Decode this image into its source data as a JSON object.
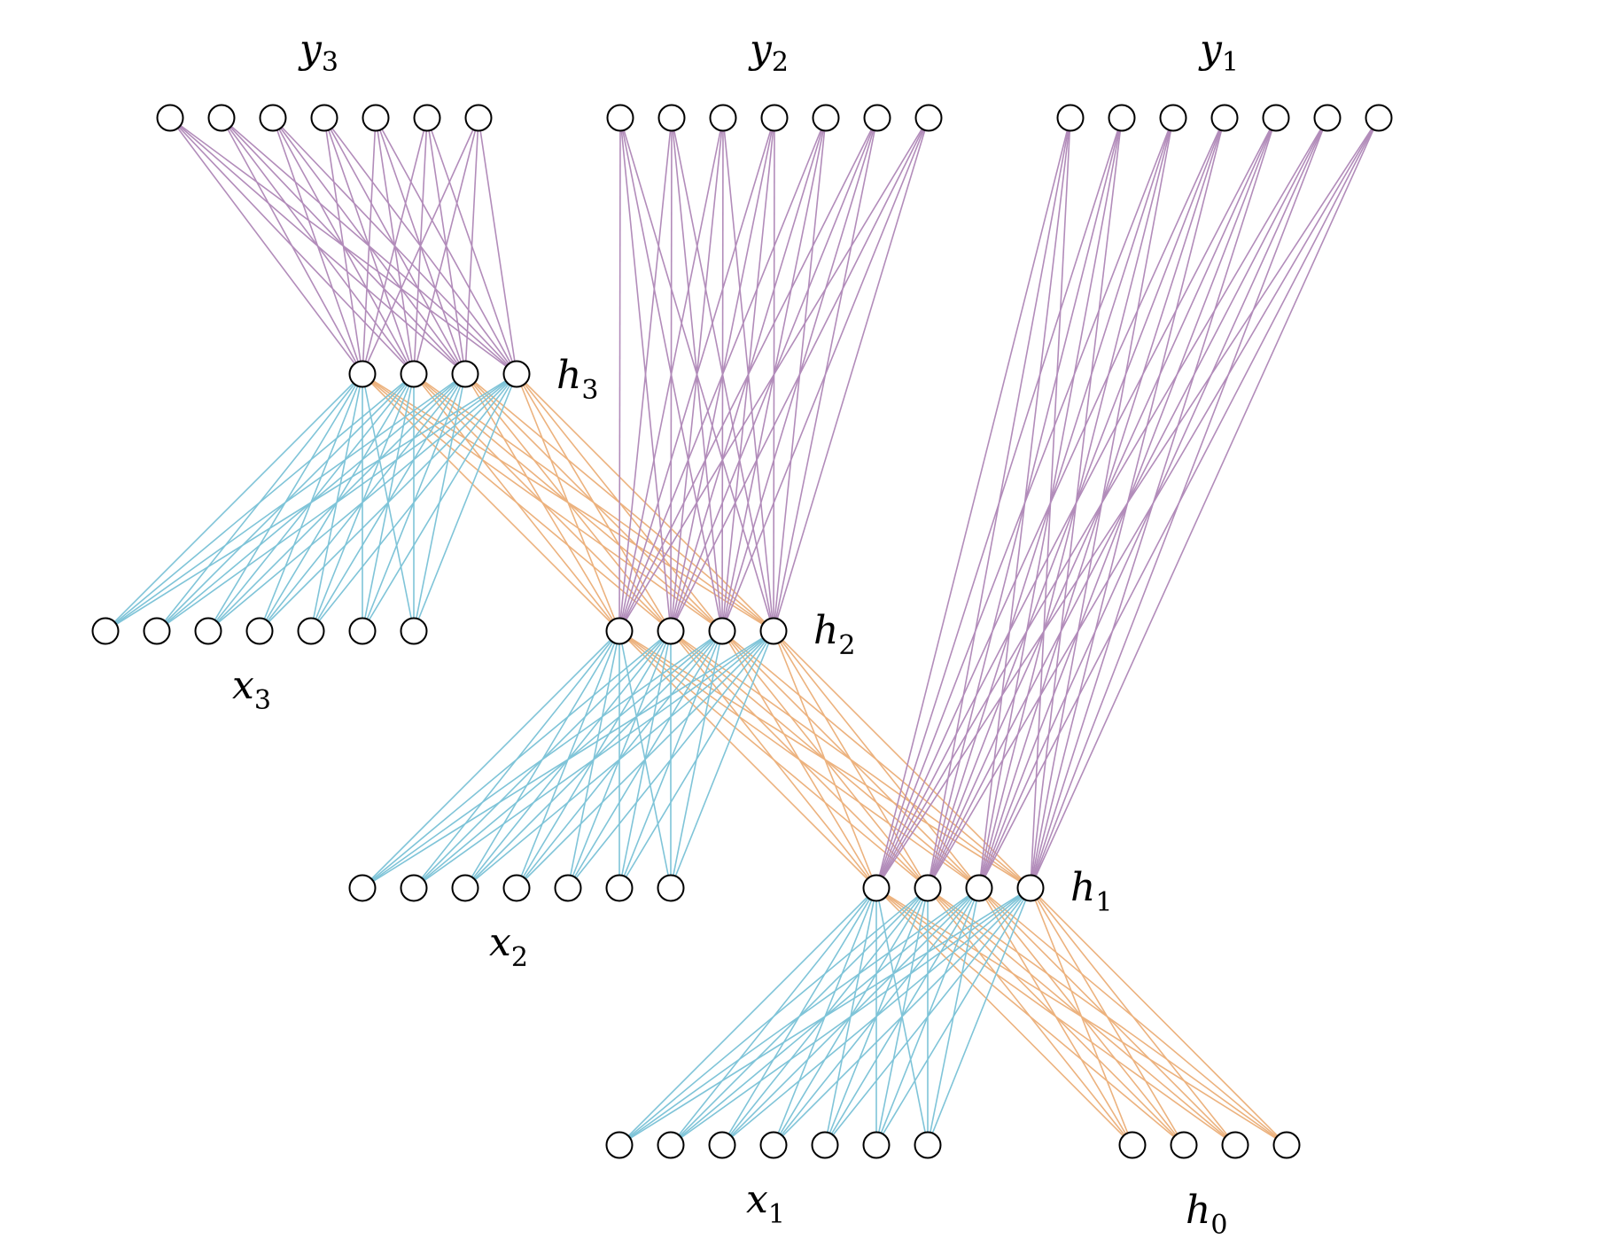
{
  "labels": {
    "y3": {
      "base": "y",
      "sub": "3"
    },
    "y2": {
      "base": "y",
      "sub": "2"
    },
    "y1": {
      "base": "y",
      "sub": "1"
    },
    "h3": {
      "base": "h",
      "sub": "3"
    },
    "h2": {
      "base": "h",
      "sub": "2"
    },
    "h1": {
      "base": "h",
      "sub": "1"
    },
    "h0": {
      "base": "h",
      "sub": "0"
    },
    "x3": {
      "base": "x",
      "sub": "3"
    },
    "x2": {
      "base": "x",
      "sub": "2"
    },
    "x1": {
      "base": "x",
      "sub": "1"
    }
  },
  "layers": {
    "y3": 7,
    "y2": 7,
    "y1": 7,
    "h3": 4,
    "h2": 4,
    "h1": 4,
    "h0": 4,
    "x3": 7,
    "x2": 7,
    "x1": 7
  },
  "connections": [
    {
      "from": "y3",
      "to": "h3",
      "kind": "output"
    },
    {
      "from": "y2",
      "to": "h2",
      "kind": "output"
    },
    {
      "from": "y1",
      "to": "h1",
      "kind": "output"
    },
    {
      "from": "x3",
      "to": "h3",
      "kind": "input"
    },
    {
      "from": "x2",
      "to": "h2",
      "kind": "input"
    },
    {
      "from": "x1",
      "to": "h1",
      "kind": "input"
    },
    {
      "from": "h3",
      "to": "h2",
      "kind": "recurrent"
    },
    {
      "from": "h2",
      "to": "h1",
      "kind": "recurrent"
    },
    {
      "from": "h1",
      "to": "h0",
      "kind": "recurrent"
    }
  ],
  "colors": {
    "output": "#b28cba",
    "input": "#7fc4d8",
    "recurrent": "#ecb27e",
    "node_stroke": "#000000",
    "node_fill": "#ffffff"
  }
}
